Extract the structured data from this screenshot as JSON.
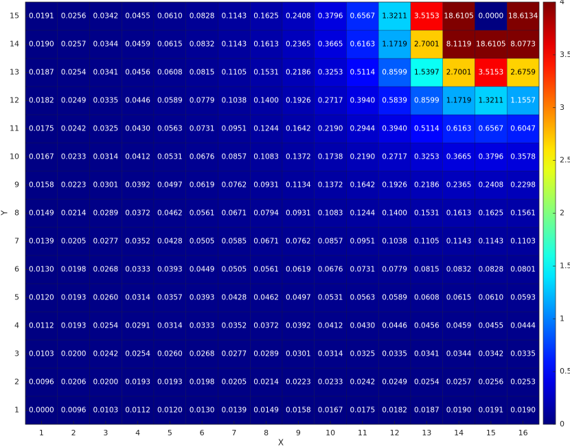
{
  "chart_data": {
    "type": "heatmap",
    "x_label": "X",
    "y_label": "Y",
    "x": [
      1,
      2,
      3,
      4,
      5,
      6,
      7,
      8,
      9,
      10,
      11,
      12,
      13,
      14,
      15,
      16
    ],
    "y": [
      1,
      2,
      3,
      4,
      5,
      6,
      7,
      8,
      9,
      10,
      11,
      12,
      13,
      14,
      15
    ],
    "xlim": [
      0.5,
      16.5
    ],
    "ylim": [
      0.5,
      15.5
    ],
    "xticks": [
      1,
      2,
      3,
      4,
      5,
      6,
      7,
      8,
      9,
      10,
      11,
      12,
      13,
      14,
      15,
      16
    ],
    "yticks": [
      1,
      2,
      3,
      4,
      5,
      6,
      7,
      8,
      9,
      10,
      11,
      12,
      13,
      14,
      15
    ],
    "colormap": "jet",
    "clim": [
      0,
      4
    ],
    "cticks": [
      0,
      0.5,
      1,
      1.5,
      2,
      2.5,
      3,
      3.5,
      4
    ],
    "z": [
      [
        0.0,
        0.0096,
        0.0103,
        0.0112,
        0.012,
        0.013,
        0.0139,
        0.0149,
        0.0158,
        0.0167,
        0.0175,
        0.0182,
        0.0187,
        0.019,
        0.0191,
        0.019
      ],
      [
        0.0096,
        0.0206,
        0.02,
        0.0193,
        0.0193,
        0.0198,
        0.0205,
        0.0214,
        0.0223,
        0.0233,
        0.0242,
        0.0249,
        0.0254,
        0.0257,
        0.0256,
        0.0253
      ],
      [
        0.0103,
        0.02,
        0.0242,
        0.0254,
        0.026,
        0.0268,
        0.0277,
        0.0289,
        0.0301,
        0.0314,
        0.0325,
        0.0335,
        0.0341,
        0.0344,
        0.0342,
        0.0335
      ],
      [
        0.0112,
        0.0193,
        0.0254,
        0.0291,
        0.0314,
        0.0333,
        0.0352,
        0.0372,
        0.0392,
        0.0412,
        0.043,
        0.0446,
        0.0456,
        0.0459,
        0.0455,
        0.0444
      ],
      [
        0.012,
        0.0193,
        0.026,
        0.0314,
        0.0357,
        0.0393,
        0.0428,
        0.0462,
        0.0497,
        0.0531,
        0.0563,
        0.0589,
        0.0608,
        0.0615,
        0.061,
        0.0593
      ],
      [
        0.013,
        0.0198,
        0.0268,
        0.0333,
        0.0393,
        0.0449,
        0.0505,
        0.0561,
        0.0619,
        0.0676,
        0.0731,
        0.0779,
        0.0815,
        0.0832,
        0.0828,
        0.0801
      ],
      [
        0.0139,
        0.0205,
        0.0277,
        0.0352,
        0.0428,
        0.0505,
        0.0585,
        0.0671,
        0.0762,
        0.0857,
        0.0951,
        0.1038,
        0.1105,
        0.1143,
        0.1143,
        0.1103
      ],
      [
        0.0149,
        0.0214,
        0.0289,
        0.0372,
        0.0462,
        0.0561,
        0.0671,
        0.0794,
        0.0931,
        0.1083,
        0.1244,
        0.14,
        0.1531,
        0.1613,
        0.1625,
        0.1561
      ],
      [
        0.0158,
        0.0223,
        0.0301,
        0.0392,
        0.0497,
        0.0619,
        0.0762,
        0.0931,
        0.1134,
        0.1372,
        0.1642,
        0.1926,
        0.2186,
        0.2365,
        0.2408,
        0.2298
      ],
      [
        0.0167,
        0.0233,
        0.0314,
        0.0412,
        0.0531,
        0.0676,
        0.0857,
        0.1083,
        0.1372,
        0.1738,
        0.219,
        0.2717,
        0.3253,
        0.3665,
        0.3796,
        0.3578
      ],
      [
        0.0175,
        0.0242,
        0.0325,
        0.043,
        0.0563,
        0.0731,
        0.0951,
        0.1244,
        0.1642,
        0.219,
        0.2944,
        0.394,
        0.5114,
        0.6163,
        0.6567,
        0.6047
      ],
      [
        0.0182,
        0.0249,
        0.0335,
        0.0446,
        0.0589,
        0.0779,
        0.1038,
        0.14,
        0.1926,
        0.2717,
        0.394,
        0.5839,
        0.8599,
        1.1719,
        1.3211,
        1.1557
      ],
      [
        0.0187,
        0.0254,
        0.0341,
        0.0456,
        0.0608,
        0.0815,
        0.1105,
        0.1531,
        0.2186,
        0.3253,
        0.5114,
        0.8599,
        1.5397,
        2.7001,
        3.5153,
        2.6759
      ],
      [
        0.019,
        0.0257,
        0.0344,
        0.0459,
        0.0615,
        0.0832,
        0.1143,
        0.1613,
        0.2365,
        0.3665,
        0.6163,
        1.1719,
        2.7001,
        8.1119,
        18.6105,
        8.0773
      ],
      [
        0.0191,
        0.0256,
        0.0342,
        0.0455,
        0.061,
        0.0828,
        0.1143,
        0.1625,
        0.2408,
        0.3796,
        0.6567,
        1.3211,
        3.5153,
        18.6105,
        0.0,
        18.6134
      ]
    ],
    "value_labels": [
      [
        "0.0000",
        "0.0096",
        "0.0103",
        "0.0112",
        "0.0120",
        "0.0130",
        "0.0139",
        "0.0149",
        "0.0158",
        "0.0167",
        "0.0175",
        "0.0182",
        "0.0187",
        "0.0190",
        "0.0191",
        "0.0190"
      ],
      [
        "0.0096",
        "0.0206",
        "0.0200",
        "0.0193",
        "0.0193",
        "0.0198",
        "0.0205",
        "0.0214",
        "0.0223",
        "0.0233",
        "0.0242",
        "0.0249",
        "0.0254",
        "0.0257",
        "0.0256",
        "0.0253"
      ],
      [
        "0.0103",
        "0.0200",
        "0.0242",
        "0.0254",
        "0.0260",
        "0.0268",
        "0.0277",
        "0.0289",
        "0.0301",
        "0.0314",
        "0.0325",
        "0.0335",
        "0.0341",
        "0.0344",
        "0.0342",
        "0.0335"
      ],
      [
        "0.0112",
        "0.0193",
        "0.0254",
        "0.0291",
        "0.0314",
        "0.0333",
        "0.0352",
        "0.0372",
        "0.0392",
        "0.0412",
        "0.0430",
        "0.0446",
        "0.0456",
        "0.0459",
        "0.0455",
        "0.0444"
      ],
      [
        "0.0120",
        "0.0193",
        "0.0260",
        "0.0314",
        "0.0357",
        "0.0393",
        "0.0428",
        "0.0462",
        "0.0497",
        "0.0531",
        "0.0563",
        "0.0589",
        "0.0608",
        "0.0615",
        "0.0610",
        "0.0593"
      ],
      [
        "0.0130",
        "0.0198",
        "0.0268",
        "0.0333",
        "0.0393",
        "0.0449",
        "0.0505",
        "0.0561",
        "0.0619",
        "0.0676",
        "0.0731",
        "0.0779",
        "0.0815",
        "0.0832",
        "0.0828",
        "0.0801"
      ],
      [
        "0.0139",
        "0.0205",
        "0.0277",
        "0.0352",
        "0.0428",
        "0.0505",
        "0.0585",
        "0.0671",
        "0.0762",
        "0.0857",
        "0.0951",
        "0.1038",
        "0.1105",
        "0.1143",
        "0.1143",
        "0.1103"
      ],
      [
        "0.0149",
        "0.0214",
        "0.0289",
        "0.0372",
        "0.0462",
        "0.0561",
        "0.0671",
        "0.0794",
        "0.0931",
        "0.1083",
        "0.1244",
        "0.1400",
        "0.1531",
        "0.1613",
        "0.1625",
        "0.1561"
      ],
      [
        "0.0158",
        "0.0223",
        "0.0301",
        "0.0392",
        "0.0497",
        "0.0619",
        "0.0762",
        "0.0931",
        "0.1134",
        "0.1372",
        "0.1642",
        "0.1926",
        "0.2186",
        "0.2365",
        "0.2408",
        "0.2298"
      ],
      [
        "0.0167",
        "0.0233",
        "0.0314",
        "0.0412",
        "0.0531",
        "0.0676",
        "0.0857",
        "0.1083",
        "0.1372",
        "0.1738",
        "0.2190",
        "0.2717",
        "0.3253",
        "0.3665",
        "0.3796",
        "0.3578"
      ],
      [
        "0.0175",
        "0.0242",
        "0.0325",
        "0.0430",
        "0.0563",
        "0.0731",
        "0.0951",
        "0.1244",
        "0.1642",
        "0.2190",
        "0.2944",
        "0.3940",
        "0.5114",
        "0.6163",
        "0.6567",
        "0.6047"
      ],
      [
        "0.0182",
        "0.0249",
        "0.0335",
        "0.0446",
        "0.0589",
        "0.0779",
        "0.1038",
        "0.1400",
        "0.1926",
        "0.2717",
        "0.3940",
        "0.5839",
        "0.8599",
        "1.1719",
        "1.3211",
        "1.1557"
      ],
      [
        "0.0187",
        "0.0254",
        "0.0341",
        "0.0456",
        "0.0608",
        "0.0815",
        "0.1105",
        "0.1531",
        "0.2186",
        "0.3253",
        "0.5114",
        "0.8599",
        "1.5397",
        "2.7001",
        "3.5153",
        "2.6759"
      ],
      [
        "0.0190",
        "0.0257",
        "0.0344",
        "0.0459",
        "0.0615",
        "0.0832",
        "0.1143",
        "0.1613",
        "0.2365",
        "0.3665",
        "0.6163",
        "1.1719",
        "2.7001",
        "8.1119",
        "18.6105",
        "8.0773"
      ],
      [
        "0.0191",
        "0.0256",
        "0.0342",
        "0.0455",
        "0.0610",
        "0.0828",
        "0.1143",
        "0.1625",
        "0.2408",
        "0.3796",
        "0.6567",
        "1.3211",
        "3.5153",
        "18.6105",
        "0.0000",
        "18.6134"
      ]
    ]
  }
}
